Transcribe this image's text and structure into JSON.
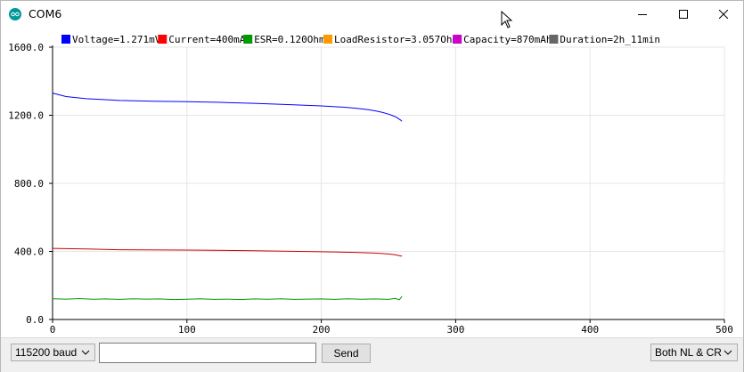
{
  "window": {
    "title": "COM6",
    "icons": {
      "app": "arduino-icon",
      "minimize": "minimize-icon",
      "maximize": "maximize-icon",
      "close": "close-icon",
      "cursor": "mouse-pointer-icon"
    }
  },
  "legend": [
    {
      "label": "Voltage=1.271mV",
      "color": "#0000ff"
    },
    {
      "label": "Current=400mA",
      "color": "#ff0000"
    },
    {
      "label": "ESR=0.120Ohm",
      "color": "#009900"
    },
    {
      "label": "LoadResistor=3.057Ohm",
      "color": "#ff9900"
    },
    {
      "label": "Capacity=870mAh",
      "color": "#cc00cc"
    },
    {
      "label": "Duration=2h_11min",
      "color": "#666666"
    }
  ],
  "chart_data": {
    "type": "line",
    "x_ticks": [
      "0",
      "100",
      "200",
      "300",
      "400",
      "500"
    ],
    "y_ticks": [
      "0.0",
      "400.0",
      "800.0",
      "1200.0",
      "1600.0"
    ],
    "xlim": [
      0,
      500
    ],
    "ylim": [
      0,
      1600
    ],
    "grid": true,
    "legend_position": "top",
    "series": [
      {
        "name": "Voltage=1.271mV",
        "color": "#0000ff",
        "x": [
          0,
          10,
          25,
          50,
          75,
          100,
          125,
          150,
          175,
          200,
          215,
          225,
          235,
          240,
          245,
          250,
          253,
          256,
          259,
          260
        ],
        "y": [
          1330,
          1310,
          1297,
          1287,
          1282,
          1280,
          1276,
          1270,
          1263,
          1255,
          1248,
          1242,
          1233,
          1226,
          1218,
          1207,
          1198,
          1188,
          1172,
          1165
        ]
      },
      {
        "name": "Current=400mA",
        "color": "#cc0000",
        "x": [
          0,
          25,
          50,
          100,
          150,
          200,
          225,
          240,
          250,
          255,
          260
        ],
        "y": [
          418,
          414,
          410,
          408,
          404,
          398,
          394,
          390,
          385,
          380,
          372
        ]
      },
      {
        "name": "ESR=0.120Ohm",
        "color": "#009900",
        "x": [
          0,
          10,
          20,
          30,
          40,
          50,
          60,
          70,
          80,
          90,
          100,
          110,
          120,
          130,
          140,
          150,
          160,
          170,
          180,
          190,
          200,
          210,
          220,
          230,
          240,
          250,
          255,
          258,
          260
        ],
        "y": [
          122,
          120,
          123,
          119,
          121,
          118,
          122,
          120,
          121,
          117,
          119,
          122,
          118,
          120,
          117,
          121,
          119,
          122,
          118,
          120,
          121,
          118,
          122,
          119,
          121,
          118,
          124,
          116,
          135
        ]
      }
    ]
  },
  "bottom": {
    "baud": "115200 baud",
    "input_value": "",
    "send": "Send",
    "line_ending": "Both NL & CR"
  }
}
